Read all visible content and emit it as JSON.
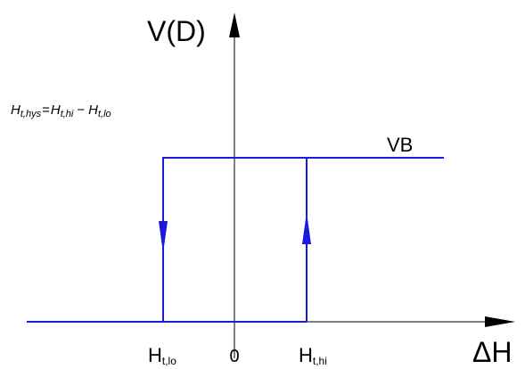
{
  "axes": {
    "y_label": "V(D)",
    "x_label": "ΔH",
    "origin_label": "0"
  },
  "formula": {
    "lhs_main": "H",
    "lhs_sub": "t,hys",
    "equals": "=",
    "term1_main": "H",
    "term1_sub": "t,hi",
    "minus": "−",
    "term2_main": "H",
    "term2_sub": "t,lo"
  },
  "curve_label": "VB",
  "ticks": {
    "lo_main": "H",
    "lo_sub": "t,lo",
    "hi_main": "H",
    "hi_sub": "t,hi"
  },
  "colors": {
    "curve": "#1a1adc",
    "axis": "#000000"
  }
}
